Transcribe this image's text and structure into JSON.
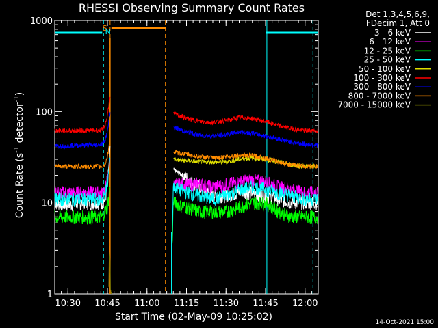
{
  "chart_data": {
    "type": "line",
    "title": "RHESSI Observing Summary Count Rates",
    "xlabel": "Start Time (02-May-09 10:25:02)",
    "ylabel_main": "Count Rate (s",
    "ylabel_sup1": "-1",
    "ylabel_mid": " detector",
    "ylabel_sup2": "-1",
    "ylabel_end": ")",
    "x_unit": "minutes after 10:25:02",
    "xlim": [
      0,
      100
    ],
    "y_scale": "log",
    "ylim": [
      1,
      1000
    ],
    "x_ticks": [
      {
        "t": 5,
        "label": "10:30"
      },
      {
        "t": 20,
        "label": "10:45"
      },
      {
        "t": 35,
        "label": "11:00"
      },
      {
        "t": 50,
        "label": "11:15"
      },
      {
        "t": 65,
        "label": "11:30"
      },
      {
        "t": 80,
        "label": "11:45"
      },
      {
        "t": 95,
        "label": "12:00"
      }
    ],
    "y_ticks": [
      {
        "v": 1,
        "label": "1"
      },
      {
        "v": 10,
        "label": "10"
      },
      {
        "v": 100,
        "label": "100"
      },
      {
        "v": 1000,
        "label": "1000"
      }
    ],
    "legend_header": [
      "Det 1,3,4,5,6,9,",
      "FDecim 1, Att 0"
    ],
    "legend_position": "top-right, outside plot",
    "series": [
      {
        "name": "3 - 6 keV",
        "color": "#ffffff",
        "x": [
          0,
          5,
          10,
          15,
          18,
          19,
          20,
          20.5,
          21,
          44,
          44.1,
          45,
          50,
          55,
          60,
          65,
          70,
          75,
          80,
          85,
          90,
          95,
          100
        ],
        "values": [
          10,
          9.5,
          10,
          10,
          10,
          11,
          14,
          25,
          40,
          null,
          null,
          23,
          19,
          15,
          12,
          12,
          13,
          13,
          12,
          11,
          10,
          10,
          10
        ]
      },
      {
        "name": "6 - 12 keV",
        "color": "#ff00ff",
        "x": [
          0,
          5,
          10,
          15,
          18,
          19,
          20,
          21,
          44,
          44.1,
          45,
          50,
          55,
          60,
          65,
          70,
          75,
          80,
          85,
          90,
          95,
          100
        ],
        "values": [
          13,
          13,
          13,
          13,
          13,
          14,
          18,
          30,
          null,
          null,
          16,
          16,
          16,
          15,
          16,
          17,
          18,
          17,
          15,
          14,
          13,
          13
        ]
      },
      {
        "name": "12 - 25 keV",
        "color": "#00ff00",
        "x": [
          0,
          5,
          10,
          15,
          18,
          19,
          20,
          21,
          44,
          44.1,
          44.5,
          45,
          50,
          55,
          60,
          65,
          70,
          75,
          80,
          85,
          90,
          95,
          100
        ],
        "values": [
          7,
          7,
          7,
          7,
          7,
          8,
          9,
          15,
          null,
          null,
          3,
          10,
          9,
          8,
          8,
          8,
          9,
          10,
          10,
          8,
          7,
          7,
          7
        ]
      },
      {
        "name": "25 - 50 keV",
        "color": "#00ffff",
        "x": [
          0,
          5,
          10,
          15,
          18,
          19,
          20,
          21,
          44,
          44.1,
          44.4,
          45,
          50,
          55,
          60,
          65,
          70,
          75,
          80,
          85,
          90,
          95,
          100
        ],
        "values": [
          11,
          11,
          11,
          11,
          11,
          12,
          16,
          32,
          null,
          null,
          2.5,
          15,
          13,
          12,
          11,
          12,
          14,
          15,
          14,
          13,
          12,
          11,
          11
        ]
      },
      {
        "name": "50 - 100 keV",
        "color": "#e0e000",
        "x": [
          44.1,
          45,
          50,
          55,
          60,
          65,
          70,
          75,
          80,
          85,
          90,
          95,
          100
        ],
        "values": [
          null,
          30,
          29,
          28,
          28,
          28,
          30,
          31,
          30,
          28,
          26,
          25,
          25
        ]
      },
      {
        "name": "100 - 300 keV",
        "color": "#ff0000",
        "x": [
          0,
          5,
          10,
          15,
          18,
          19,
          20,
          20.5,
          21,
          44,
          44.1,
          45,
          50,
          55,
          60,
          65,
          70,
          75,
          80,
          85,
          90,
          95,
          100
        ],
        "values": [
          62,
          62,
          62,
          62,
          63,
          70,
          90,
          120,
          140,
          null,
          null,
          95,
          85,
          78,
          76,
          80,
          86,
          84,
          78,
          70,
          65,
          62,
          62
        ]
      },
      {
        "name": "300 - 800 keV",
        "color": "#0000ff",
        "x": [
          0,
          5,
          10,
          15,
          18,
          19,
          20,
          21,
          44,
          44.1,
          45,
          50,
          55,
          60,
          65,
          70,
          75,
          80,
          85,
          90,
          95,
          100
        ],
        "values": [
          42,
          42,
          43,
          43,
          44,
          48,
          60,
          100,
          null,
          null,
          67,
          60,
          55,
          54,
          56,
          60,
          58,
          54,
          50,
          46,
          44,
          43
        ]
      },
      {
        "name": "800 - 7000 keV",
        "color": "#ff8c00",
        "x": [
          0,
          5,
          10,
          15,
          18,
          19,
          20,
          21,
          44,
          44.1,
          45,
          50,
          55,
          60,
          65,
          70,
          75,
          80,
          85,
          90,
          95,
          100
        ],
        "values": [
          25,
          25,
          25,
          25,
          25,
          26,
          32,
          50,
          null,
          null,
          36,
          34,
          32,
          31,
          32,
          33,
          33,
          31,
          28,
          26,
          25,
          25
        ]
      },
      {
        "name": "7000 - 15000 keV",
        "color": "#808000",
        "x": [
          0,
          20.5,
          20.6,
          20.8,
          21,
          21.2,
          21.5
        ],
        "values": [
          null,
          1,
          2,
          3.5,
          2,
          1,
          1
        ]
      }
    ],
    "annotations": [
      {
        "text": "S",
        "t": 19,
        "color": "#ff8c00"
      },
      {
        "text": "N",
        "t": 20.2,
        "color": "#00ffff"
      }
    ]
  },
  "footer": {
    "timestamp": "14-Oct-2021 15:00"
  }
}
